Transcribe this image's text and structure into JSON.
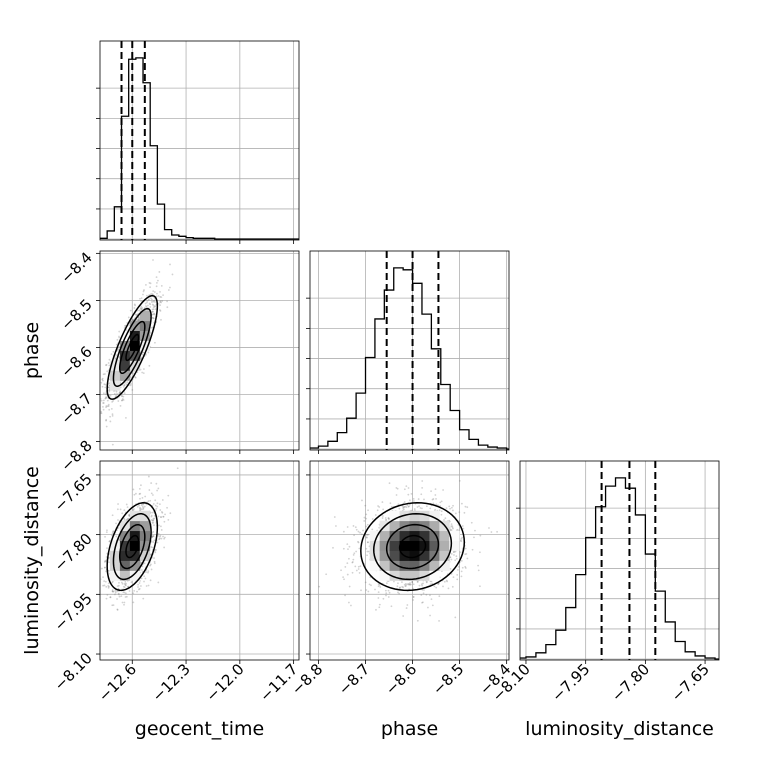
{
  "chart_data": {
    "type": "corner",
    "parameters": [
      "geocent_time",
      "phase",
      "luminosity_distance"
    ],
    "axes": {
      "geocent_time": {
        "range": [
          -12.78,
          -11.67
        ],
        "ticks": [
          -12.6,
          -12.3,
          -12.0,
          -11.7
        ],
        "tick_labels": [
          "−12.6",
          "−12.3",
          "−12.0",
          "−11.7"
        ]
      },
      "phase": {
        "range": [
          -8.818,
          -8.395
        ],
        "ticks": [
          -8.8,
          -8.7,
          -8.6,
          -8.5,
          -8.4
        ],
        "tick_labels": [
          "−8.8",
          "−8.7",
          "−8.6",
          "−8.5",
          "−8.4"
        ]
      },
      "luminosity_distance": {
        "range": [
          -8.115,
          -7.615
        ],
        "ticks": [
          -8.1,
          -7.95,
          -7.8,
          -7.65
        ],
        "tick_labels": [
          "−8.10",
          "−7.95",
          "−7.80",
          "−7.65"
        ]
      }
    },
    "diagonal": [
      {
        "parameter": "geocent_time",
        "bin_edges": [
          -12.78,
          -12.74,
          -12.7,
          -12.66,
          -12.62,
          -12.58,
          -12.54,
          -12.5,
          -12.46,
          -12.42,
          -12.38,
          -12.34,
          -12.3,
          -12.26,
          -12.22,
          -12.18,
          -12.14,
          -12.1,
          -12.06,
          -12.02,
          -11.98,
          -11.94,
          -11.9,
          -11.86,
          -11.82,
          -11.78,
          -11.74,
          -11.7,
          -11.67
        ],
        "counts": [
          1,
          12,
          48,
          183,
          268,
          270,
          233,
          139,
          52,
          14,
          6,
          4,
          2,
          1,
          1,
          1,
          0,
          0,
          0,
          0,
          0,
          0,
          0,
          0,
          0,
          0,
          0,
          0
        ],
        "quantiles": [
          -12.66,
          -12.6,
          -12.53
        ]
      },
      {
        "parameter": "phase",
        "bin_edges": [
          -8.818,
          -8.8,
          -8.78,
          -8.76,
          -8.74,
          -8.72,
          -8.7,
          -8.68,
          -8.66,
          -8.64,
          -8.62,
          -8.6,
          -8.58,
          -8.56,
          -8.54,
          -8.52,
          -8.5,
          -8.48,
          -8.46,
          -8.44,
          -8.42,
          -8.4,
          -8.395
        ],
        "counts": [
          1,
          3,
          8,
          17,
          32,
          58,
          95,
          135,
          165,
          188,
          186,
          172,
          140,
          104,
          67,
          40,
          20,
          10,
          4,
          2,
          1,
          0
        ],
        "quantiles": [
          -8.655,
          -8.6,
          -8.545
        ]
      },
      {
        "parameter": "luminosity_distance",
        "bin_edges": [
          -8.115,
          -8.1,
          -8.075,
          -8.05,
          -8.025,
          -8.0,
          -7.975,
          -7.95,
          -7.925,
          -7.9,
          -7.875,
          -7.85,
          -7.825,
          -7.8,
          -7.775,
          -7.75,
          -7.725,
          -7.7,
          -7.675,
          -7.65,
          -7.625,
          -7.615
        ],
        "counts": [
          1,
          2,
          6,
          14,
          28,
          50,
          82,
          118,
          148,
          168,
          176,
          166,
          140,
          102,
          66,
          36,
          17,
          7,
          3,
          1,
          0
        ],
        "quantiles": [
          -7.91,
          -7.84,
          -7.775
        ]
      }
    ],
    "pairs": [
      {
        "x": "geocent_time",
        "y": "phase",
        "mean": [
          -12.6,
          -8.6
        ],
        "sigma": [
          0.07,
          0.055
        ],
        "correlation": 0.8
      },
      {
        "x": "geocent_time",
        "y": "luminosity_distance",
        "mean": [
          -12.6,
          -7.83
        ],
        "sigma": [
          0.07,
          0.055
        ],
        "correlation": 0.45
      },
      {
        "x": "phase",
        "y": "luminosity_distance",
        "mean": [
          -8.6,
          -7.83
        ],
        "sigma": [
          0.055,
          0.055
        ],
        "correlation": 0.1
      }
    ],
    "contour_levels": [
      0.5,
      1.0,
      1.5,
      2.0
    ],
    "grid": true,
    "colors": {
      "line": "#000000",
      "grid": "#b0b0b0",
      "points": "#7f7f7f",
      "background": "#ffffff"
    }
  }
}
